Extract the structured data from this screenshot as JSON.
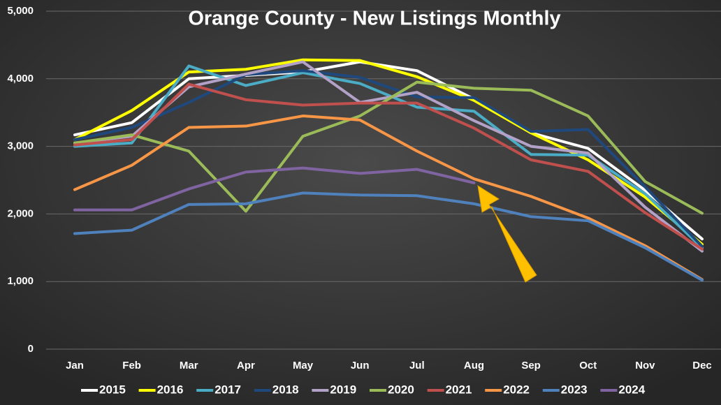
{
  "chart_data": {
    "type": "line",
    "title": "Orange County - New Listings Monthly",
    "categories": [
      "Jan",
      "Feb",
      "Mar",
      "Apr",
      "May",
      "Jun",
      "Jul",
      "Aug",
      "Sep",
      "Oct",
      "Nov",
      "Dec"
    ],
    "ylim": [
      0,
      5000
    ],
    "yticks": [
      0,
      {
        "value": 1000,
        "label": "1,000"
      },
      {
        "value": 2000,
        "label": "2,000"
      },
      {
        "value": 3000,
        "label": "3,000"
      },
      {
        "value": 4000,
        "label": "4,000"
      },
      {
        "value": 5000,
        "label": "5,000"
      }
    ],
    "grid": true,
    "legend": "bottom",
    "series": [
      {
        "name": "2015",
        "color": "#ffffff",
        "values": [
          3170,
          3350,
          4000,
          4050,
          4100,
          4250,
          4120,
          3700,
          3200,
          2970,
          2350,
          1630
        ]
      },
      {
        "name": "2016",
        "color": "#ffff00",
        "values": [
          3100,
          3530,
          4100,
          4140,
          4280,
          4270,
          4030,
          3680,
          3200,
          2800,
          2250,
          1550
        ]
      },
      {
        "name": "2017",
        "color": "#4bacc6",
        "values": [
          3000,
          3050,
          4190,
          3900,
          4090,
          3930,
          3580,
          3520,
          2880,
          2870,
          2300,
          1500
        ]
      },
      {
        "name": "2018",
        "color": "#1f497d",
        "values": [
          3100,
          3280,
          3650,
          4060,
          4120,
          4020,
          3730,
          3720,
          3220,
          3250,
          2400,
          1520
        ]
      },
      {
        "name": "2019",
        "color": "#b3a2c7",
        "values": [
          3050,
          3150,
          3880,
          4070,
          4250,
          3650,
          3800,
          3380,
          3000,
          2900,
          2100,
          1450
        ]
      },
      {
        "name": "2020",
        "color": "#9bbb59",
        "values": [
          3050,
          3170,
          2930,
          2040,
          3150,
          3450,
          3950,
          3860,
          3830,
          3450,
          2480,
          2010
        ]
      },
      {
        "name": "2021",
        "color": "#c0504d",
        "values": [
          3020,
          3100,
          3920,
          3690,
          3610,
          3640,
          3640,
          3270,
          2800,
          2630,
          2020,
          1480
        ]
      },
      {
        "name": "2022",
        "color": "#f79646",
        "values": [
          2360,
          2720,
          3280,
          3300,
          3450,
          3390,
          2930,
          2520,
          2260,
          1940,
          1530,
          1030
        ]
      },
      {
        "name": "2023",
        "color": "#4f81bd",
        "values": [
          1710,
          1760,
          2140,
          2150,
          2310,
          2280,
          2270,
          2150,
          1960,
          1900,
          1500,
          1020
        ]
      },
      {
        "name": "2024",
        "color": "#8064a2",
        "values": [
          2060,
          2060,
          2370,
          2620,
          2680,
          2600,
          2660,
          2460,
          null,
          null,
          null,
          null
        ]
      }
    ]
  }
}
